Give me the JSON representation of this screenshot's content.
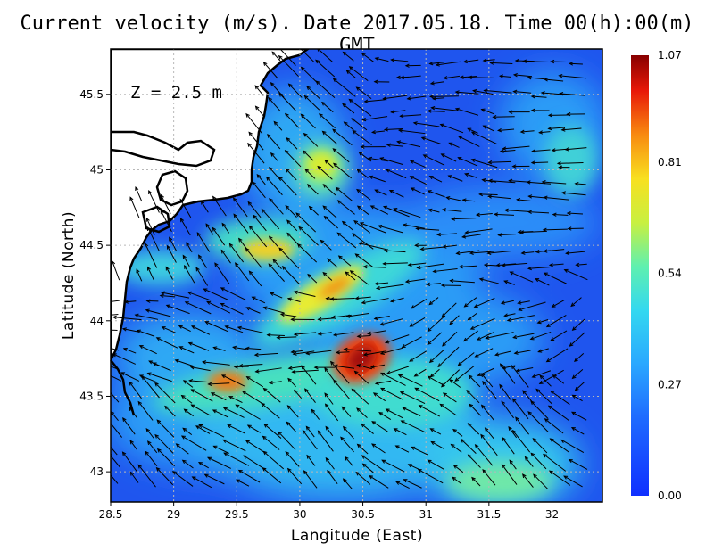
{
  "title": "Current velocity (m/s). Date 2017.05.18. Time 00(h):00(m) GMT",
  "depth_label": "Z = 2.5 m",
  "colors": {
    "low": "#1a3fe6",
    "mid_low": "#2aa8ff",
    "mid": "#3de0c8",
    "mid_high": "#f0f020",
    "high": "#f05a10",
    "max": "#8a0000",
    "land": "#ffffff",
    "coast": "#000000"
  },
  "chart_data": {
    "type": "heatmap",
    "title": "Current velocity (m/s). Date 2017.05.18. Time 00(h):00(m) GMT",
    "xlabel": "Langitude (East)",
    "ylabel": "Latitude (North)",
    "xlim": [
      28.5,
      32.4
    ],
    "ylim": [
      42.8,
      45.8
    ],
    "x_ticks": [
      "28.5",
      "29",
      "29.5",
      "30",
      "30.5",
      "31",
      "31.5",
      "32"
    ],
    "y_ticks": [
      "43",
      "43.5",
      "44",
      "44.5",
      "45",
      "45.5"
    ],
    "grid": true,
    "colorbar": {
      "min": 0.0,
      "max": 1.07,
      "ticks": [
        "0.00",
        "0.27",
        "0.54",
        "0.81",
        "1.07"
      ]
    },
    "hotspots": [
      {
        "lon": 30.45,
        "lat": 43.75,
        "value": 1.07
      },
      {
        "lon": 30.2,
        "lat": 44.15,
        "value": 0.85
      },
      {
        "lon": 29.35,
        "lat": 43.6,
        "value": 0.8
      },
      {
        "lon": 29.7,
        "lat": 44.5,
        "value": 0.7
      },
      {
        "lon": 30.15,
        "lat": 44.95,
        "value": 0.65
      },
      {
        "lon": 30.5,
        "lat": 44.6,
        "value": 0.6
      },
      {
        "lon": 31.6,
        "lat": 42.95,
        "value": 0.55
      },
      {
        "lon": 32.1,
        "lat": 44.9,
        "value": 0.5
      }
    ]
  }
}
